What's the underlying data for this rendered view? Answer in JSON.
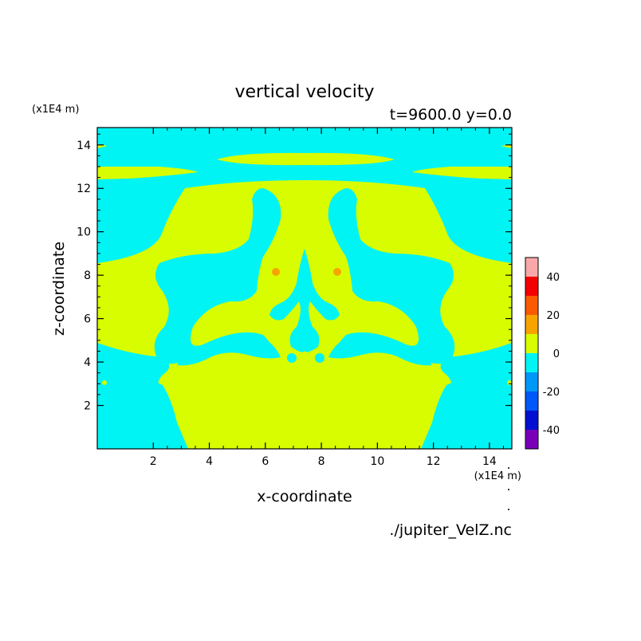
{
  "chart_data": {
    "type": "heatmap",
    "title": "vertical velocity",
    "subtitle": "t=9600.0 y=0.0",
    "xlabel": "x-coordinate",
    "ylabel": "z-coordinate",
    "x_unit": "(x1E4 m)",
    "y_unit": "(x1E4 m)",
    "source_file": "./jupiter_VelZ.nc",
    "xlim": [
      0,
      14.8
    ],
    "ylim": [
      0,
      14.8
    ],
    "x_ticks": [
      "2",
      "4",
      "6",
      "8",
      "10",
      "12",
      "14"
    ],
    "y_ticks": [
      "2",
      "4",
      "6",
      "8",
      "10",
      "12",
      "14"
    ],
    "colorbar": {
      "range": [
        -50,
        50
      ],
      "tick_labels": [
        "40",
        "20",
        "0",
        "-20",
        "-40"
      ],
      "levels": [
        {
          "from": 40,
          "to": 50,
          "color": "#f8a8a8"
        },
        {
          "from": 30,
          "to": 40,
          "color": "#f40000"
        },
        {
          "from": 20,
          "to": 30,
          "color": "#fa5a00"
        },
        {
          "from": 10,
          "to": 20,
          "color": "#f8a400"
        },
        {
          "from": 0,
          "to": 10,
          "color": "#d8fc00"
        },
        {
          "from": -10,
          "to": 0,
          "color": "#00f4f4"
        },
        {
          "from": -20,
          "to": -10,
          "color": "#0098f8"
        },
        {
          "from": -30,
          "to": -20,
          "color": "#0058f8"
        },
        {
          "from": -40,
          "to": -30,
          "color": "#0010d0"
        },
        {
          "from": -50,
          "to": -40,
          "color": "#7800b8"
        }
      ]
    },
    "field_colors": {
      "positive_low": "#d8fc00",
      "negative_low": "#00f4f4",
      "positive_mid": "#f8a400"
    }
  }
}
